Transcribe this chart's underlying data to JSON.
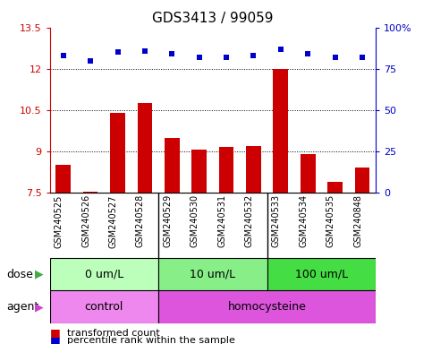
{
  "title": "GDS3413 / 99059",
  "samples": [
    "GSM240525",
    "GSM240526",
    "GSM240527",
    "GSM240528",
    "GSM240529",
    "GSM240530",
    "GSM240531",
    "GSM240532",
    "GSM240533",
    "GSM240534",
    "GSM240535",
    "GSM240848"
  ],
  "transformed_count": [
    8.5,
    7.55,
    10.4,
    10.75,
    9.5,
    9.05,
    9.15,
    9.2,
    12.0,
    8.9,
    7.9,
    8.4
  ],
  "percentile_rank": [
    83,
    80,
    85,
    86,
    84,
    82,
    82,
    83,
    87,
    84,
    82,
    82
  ],
  "ylim_left": [
    7.5,
    13.5
  ],
  "ylim_right": [
    0,
    100
  ],
  "yticks_left": [
    7.5,
    9.0,
    10.5,
    12.0,
    13.5
  ],
  "yticks_right": [
    0,
    25,
    50,
    75,
    100
  ],
  "ytick_labels_left": [
    "7.5",
    "9",
    "10.5",
    "12",
    "13.5"
  ],
  "ytick_labels_right": [
    "0",
    "25",
    "50",
    "75",
    "100%"
  ],
  "hlines": [
    9.0,
    10.5,
    12.0
  ],
  "bar_color": "#cc0000",
  "dot_color": "#0000cc",
  "bar_bottom": 7.5,
  "dose_groups": [
    {
      "label": "0 um/L",
      "start": 0,
      "end": 4,
      "color": "#bbffbb"
    },
    {
      "label": "10 um/L",
      "start": 4,
      "end": 8,
      "color": "#88ee88"
    },
    {
      "label": "100 um/L",
      "start": 8,
      "end": 12,
      "color": "#44dd44"
    }
  ],
  "agent_groups": [
    {
      "label": "control",
      "start": 0,
      "end": 4,
      "color": "#ee88ee"
    },
    {
      "label": "homocysteine",
      "start": 4,
      "end": 12,
      "color": "#dd55dd"
    }
  ],
  "legend_bar_label": "transformed count",
  "legend_dot_label": "percentile rank within the sample",
  "dose_label": "dose",
  "agent_label": "agent",
  "sample_bg_color": "#d8d8d8",
  "plot_bg": "#ffffff",
  "title_fontsize": 11,
  "tick_fontsize": 8,
  "sample_fontsize": 7,
  "label_fontsize": 9,
  "dose_fontsize": 9,
  "agent_fontsize": 9,
  "legend_fontsize": 8
}
